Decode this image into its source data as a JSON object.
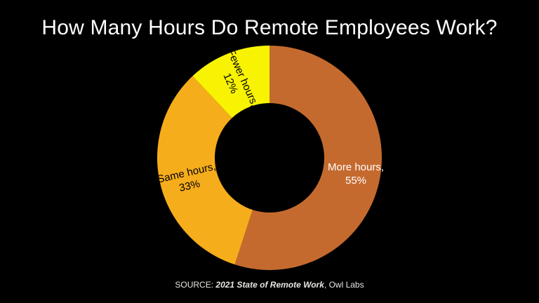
{
  "slide": {
    "title": "How Many Hours Do Remote Employees Work?",
    "background_color": "#000000",
    "title_color": "#FFFFFF"
  },
  "source": {
    "prefix": "SOURCE: ",
    "citation_italic": "2021 State of Remote Work",
    "suffix": ", Owl Labs",
    "color": "#E8E6E2"
  },
  "chart_data": {
    "type": "pie",
    "subtype": "donut",
    "title": "How Many Hours Do Remote Employees Work?",
    "categories": [
      "More hours",
      "Same hours",
      "Fewer hours"
    ],
    "values": [
      55,
      33,
      12
    ],
    "unit": "%",
    "start_angle_deg": 0,
    "direction": "clockwise",
    "inner_radius_ratio": 0.49,
    "legend_position": "none",
    "background": "#000000",
    "segments": [
      {
        "name": "More hours",
        "value": 55,
        "color": "#C56A2E",
        "label_line1": "More hours,",
        "label_line2": "55%",
        "label_color": "#FFFFFF"
      },
      {
        "name": "Same hours",
        "value": 33,
        "color": "#F6AD1B",
        "label_line1": "Same hours,",
        "label_line2": "33%",
        "label_color": "#000000"
      },
      {
        "name": "Fewer hours",
        "value": 12,
        "color": "#F8F303",
        "label_line1": "Fewer hours,",
        "label_line2": "12%",
        "label_color": "#000000"
      }
    ]
  }
}
